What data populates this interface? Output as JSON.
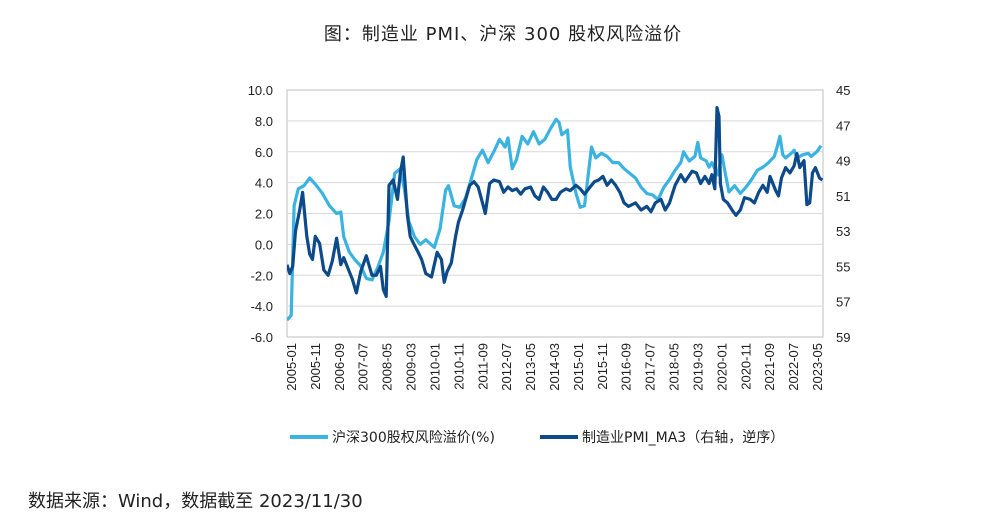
{
  "title": "图：制造业 PMI、沪深 300 股权风险溢价",
  "source": "数据来源：Wind，数据截至 2023/11/30",
  "chart_data": {
    "type": "line",
    "y_left": {
      "min": -6,
      "max": 10,
      "ticks": [
        "10.0",
        "8.0",
        "6.0",
        "4.0",
        "2.0",
        "0.0",
        "-2.0",
        "-4.0",
        "-6.0"
      ]
    },
    "y_right": {
      "min": 45,
      "max": 59,
      "inverted": true,
      "ticks": [
        "45",
        "47",
        "49",
        "51",
        "53",
        "55",
        "57",
        "59"
      ]
    },
    "x_ticks": [
      "2005-01",
      "2005-11",
      "2006-09",
      "2007-07",
      "2008-05",
      "2009-03",
      "2010-01",
      "2010-11",
      "2011-09",
      "2012-07",
      "2013-05",
      "2014-03",
      "2015-01",
      "2015-11",
      "2016-09",
      "2017-07",
      "2018-05",
      "2019-03",
      "2020-01",
      "2020-11",
      "2021-09",
      "2022-07",
      "2023-05"
    ],
    "grid": "horizontal",
    "legend_position": "bottom",
    "series": [
      {
        "name": "沪深300股权风险溢价(%)",
        "axis": "left",
        "color": "#3bb3e0",
        "values": [
          [
            2005.0,
            -4.9
          ],
          [
            2005.15,
            -4.6
          ],
          [
            2005.25,
            2.5
          ],
          [
            2005.4,
            3.6
          ],
          [
            2005.6,
            3.8
          ],
          [
            2005.8,
            4.3
          ],
          [
            2006.0,
            3.9
          ],
          [
            2006.25,
            3.3
          ],
          [
            2006.5,
            2.5
          ],
          [
            2006.75,
            2.0
          ],
          [
            2006.9,
            2.1
          ],
          [
            2007.0,
            0.5
          ],
          [
            2007.2,
            -0.5
          ],
          [
            2007.4,
            -1.0
          ],
          [
            2007.6,
            -1.4
          ],
          [
            2007.8,
            -2.2
          ],
          [
            2008.0,
            -2.3
          ],
          [
            2008.2,
            -1.5
          ],
          [
            2008.4,
            -0.5
          ],
          [
            2008.6,
            1.5
          ],
          [
            2008.8,
            4.6
          ],
          [
            2009.0,
            4.9
          ],
          [
            2009.15,
            3.5
          ],
          [
            2009.3,
            1.5
          ],
          [
            2009.5,
            0.5
          ],
          [
            2009.7,
            0.0
          ],
          [
            2009.9,
            0.3
          ],
          [
            2010.2,
            -0.2
          ],
          [
            2010.4,
            1.0
          ],
          [
            2010.6,
            3.5
          ],
          [
            2010.7,
            3.8
          ],
          [
            2010.9,
            2.5
          ],
          [
            2011.1,
            2.4
          ],
          [
            2011.3,
            3.0
          ],
          [
            2011.5,
            4.2
          ],
          [
            2011.7,
            5.5
          ],
          [
            2011.9,
            6.1
          ],
          [
            2012.1,
            5.3
          ],
          [
            2012.3,
            6.0
          ],
          [
            2012.5,
            6.8
          ],
          [
            2012.7,
            6.3
          ],
          [
            2012.8,
            6.9
          ],
          [
            2012.95,
            4.9
          ],
          [
            2013.1,
            5.5
          ],
          [
            2013.3,
            7.0
          ],
          [
            2013.5,
            6.5
          ],
          [
            2013.7,
            7.3
          ],
          [
            2013.9,
            6.5
          ],
          [
            2014.1,
            6.8
          ],
          [
            2014.3,
            7.5
          ],
          [
            2014.5,
            8.1
          ],
          [
            2014.6,
            7.9
          ],
          [
            2014.7,
            7.1
          ],
          [
            2014.9,
            7.4
          ],
          [
            2015.0,
            5.0
          ],
          [
            2015.2,
            3.3
          ],
          [
            2015.35,
            2.4
          ],
          [
            2015.5,
            2.5
          ],
          [
            2015.6,
            4.0
          ],
          [
            2015.75,
            6.3
          ],
          [
            2015.9,
            5.6
          ],
          [
            2016.1,
            5.9
          ],
          [
            2016.3,
            5.7
          ],
          [
            2016.5,
            5.3
          ],
          [
            2016.7,
            5.3
          ],
          [
            2016.9,
            4.9
          ],
          [
            2017.1,
            4.6
          ],
          [
            2017.3,
            4.3
          ],
          [
            2017.5,
            3.7
          ],
          [
            2017.7,
            3.3
          ],
          [
            2017.9,
            3.2
          ],
          [
            2018.1,
            2.9
          ],
          [
            2018.3,
            3.7
          ],
          [
            2018.5,
            4.2
          ],
          [
            2018.7,
            4.8
          ],
          [
            2018.9,
            5.3
          ],
          [
            2019.0,
            6.0
          ],
          [
            2019.2,
            5.4
          ],
          [
            2019.4,
            5.7
          ],
          [
            2019.5,
            6.6
          ],
          [
            2019.6,
            5.6
          ],
          [
            2019.8,
            5.4
          ],
          [
            2019.9,
            5.0
          ],
          [
            2020.0,
            5.3
          ],
          [
            2020.2,
            4.5
          ],
          [
            2020.35,
            5.8
          ],
          [
            2020.45,
            4.8
          ],
          [
            2020.6,
            3.4
          ],
          [
            2020.8,
            3.8
          ],
          [
            2021.0,
            3.3
          ],
          [
            2021.2,
            3.7
          ],
          [
            2021.4,
            4.2
          ],
          [
            2021.6,
            4.8
          ],
          [
            2021.8,
            5.0
          ],
          [
            2022.0,
            5.3
          ],
          [
            2022.2,
            5.7
          ],
          [
            2022.3,
            6.3
          ],
          [
            2022.4,
            7.0
          ],
          [
            2022.5,
            5.8
          ],
          [
            2022.6,
            5.6
          ],
          [
            2022.8,
            5.9
          ],
          [
            2022.9,
            6.1
          ],
          [
            2023.0,
            5.6
          ],
          [
            2023.2,
            5.8
          ],
          [
            2023.4,
            5.9
          ],
          [
            2023.5,
            5.7
          ],
          [
            2023.7,
            6.0
          ],
          [
            2023.85,
            6.4
          ]
        ]
      },
      {
        "name": "制造业PMI_MA3（右轴，逆序）",
        "axis": "right",
        "color": "#0d4a8a",
        "values": [
          [
            2005.0,
            54.9
          ],
          [
            2005.1,
            55.4
          ],
          [
            2005.2,
            55.0
          ],
          [
            2005.3,
            53.0
          ],
          [
            2005.45,
            51.8
          ],
          [
            2005.55,
            50.8
          ],
          [
            2005.7,
            53.3
          ],
          [
            2005.8,
            54.3
          ],
          [
            2005.9,
            54.6
          ],
          [
            2006.0,
            53.3
          ],
          [
            2006.15,
            53.7
          ],
          [
            2006.3,
            55.2
          ],
          [
            2006.45,
            55.5
          ],
          [
            2006.6,
            54.7
          ],
          [
            2006.75,
            53.4
          ],
          [
            2006.9,
            54.9
          ],
          [
            2007.0,
            54.5
          ],
          [
            2007.15,
            55.1
          ],
          [
            2007.3,
            55.7
          ],
          [
            2007.45,
            56.5
          ],
          [
            2007.6,
            55.3
          ],
          [
            2007.8,
            54.4
          ],
          [
            2008.0,
            55.5
          ],
          [
            2008.15,
            55.5
          ],
          [
            2008.3,
            55.0
          ],
          [
            2008.4,
            56.3
          ],
          [
            2008.5,
            56.7
          ],
          [
            2008.6,
            50.4
          ],
          [
            2008.75,
            50.1
          ],
          [
            2008.9,
            51.2
          ],
          [
            2009.0,
            49.7
          ],
          [
            2009.1,
            48.8
          ],
          [
            2009.25,
            52.1
          ],
          [
            2009.35,
            53.3
          ],
          [
            2009.5,
            53.8
          ],
          [
            2009.6,
            54.1
          ],
          [
            2009.75,
            54.6
          ],
          [
            2009.9,
            55.4
          ],
          [
            2010.1,
            55.6
          ],
          [
            2010.3,
            54.2
          ],
          [
            2010.45,
            54.6
          ],
          [
            2010.55,
            55.9
          ],
          [
            2010.65,
            55.3
          ],
          [
            2010.8,
            54.8
          ],
          [
            2010.95,
            53.3
          ],
          [
            2011.05,
            52.5
          ],
          [
            2011.2,
            51.8
          ],
          [
            2011.45,
            50.4
          ],
          [
            2011.6,
            50.2
          ],
          [
            2011.75,
            50.5
          ],
          [
            2011.9,
            51.4
          ],
          [
            2012.0,
            52.0
          ],
          [
            2012.15,
            50.3
          ],
          [
            2012.3,
            50.1
          ],
          [
            2012.5,
            50.2
          ],
          [
            2012.65,
            50.8
          ],
          [
            2012.8,
            50.5
          ],
          [
            2012.95,
            50.7
          ],
          [
            2013.1,
            50.6
          ],
          [
            2013.25,
            50.9
          ],
          [
            2013.4,
            50.6
          ],
          [
            2013.6,
            50.5
          ],
          [
            2013.75,
            51.0
          ],
          [
            2013.9,
            51.2
          ],
          [
            2014.05,
            50.5
          ],
          [
            2014.2,
            50.8
          ],
          [
            2014.35,
            51.2
          ],
          [
            2014.5,
            51.2
          ],
          [
            2014.65,
            50.8
          ],
          [
            2014.85,
            50.6
          ],
          [
            2015.0,
            50.7
          ],
          [
            2015.2,
            50.4
          ],
          [
            2015.35,
            50.6
          ],
          [
            2015.5,
            50.9
          ],
          [
            2015.7,
            50.5
          ],
          [
            2015.85,
            50.2
          ],
          [
            2016.0,
            50.1
          ],
          [
            2016.15,
            49.9
          ],
          [
            2016.3,
            50.4
          ],
          [
            2016.45,
            50.1
          ],
          [
            2016.6,
            50.4
          ],
          [
            2016.75,
            50.8
          ],
          [
            2016.9,
            51.4
          ],
          [
            2017.05,
            51.6
          ],
          [
            2017.3,
            51.4
          ],
          [
            2017.5,
            51.8
          ],
          [
            2017.7,
            51.6
          ],
          [
            2017.85,
            51.9
          ],
          [
            2018.0,
            51.4
          ],
          [
            2018.2,
            51.2
          ],
          [
            2018.35,
            51.8
          ],
          [
            2018.5,
            51.4
          ],
          [
            2018.7,
            50.4
          ],
          [
            2018.9,
            49.8
          ],
          [
            2019.05,
            50.2
          ],
          [
            2019.3,
            49.6
          ],
          [
            2019.45,
            49.7
          ],
          [
            2019.6,
            50.3
          ],
          [
            2019.75,
            49.9
          ],
          [
            2019.9,
            50.3
          ],
          [
            2020.0,
            49.8
          ],
          [
            2020.1,
            50.6
          ],
          [
            2020.18,
            46.0
          ],
          [
            2020.25,
            46.5
          ],
          [
            2020.3,
            50.3
          ],
          [
            2020.4,
            51.2
          ],
          [
            2020.55,
            51.4
          ],
          [
            2020.75,
            51.9
          ],
          [
            2020.85,
            52.1
          ],
          [
            2021.0,
            51.8
          ],
          [
            2021.15,
            51.1
          ],
          [
            2021.35,
            51.2
          ],
          [
            2021.5,
            51.4
          ],
          [
            2021.65,
            50.8
          ],
          [
            2021.8,
            50.4
          ],
          [
            2021.95,
            50.8
          ],
          [
            2022.05,
            49.9
          ],
          [
            2022.25,
            50.7
          ],
          [
            2022.35,
            51.0
          ],
          [
            2022.45,
            50.0
          ],
          [
            2022.6,
            49.4
          ],
          [
            2022.75,
            49.7
          ],
          [
            2022.9,
            49.3
          ],
          [
            2023.0,
            48.6
          ],
          [
            2023.1,
            49.4
          ],
          [
            2023.25,
            49.0
          ],
          [
            2023.35,
            51.5
          ],
          [
            2023.45,
            51.4
          ],
          [
            2023.55,
            49.7
          ],
          [
            2023.65,
            49.4
          ],
          [
            2023.8,
            50.0
          ],
          [
            2023.9,
            50.1
          ]
        ]
      }
    ]
  }
}
